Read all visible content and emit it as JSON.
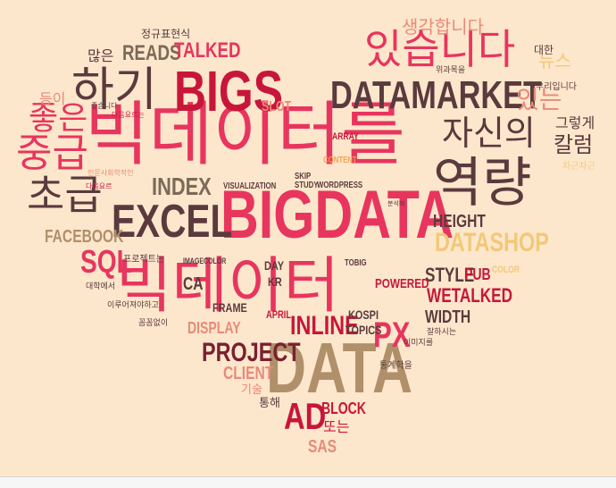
{
  "words": [
    {
      "text": "빅데이터를",
      "color": "#E8355E",
      "lang": "ko"
    },
    {
      "text": "BIGDATA",
      "color": "#E8355E",
      "lang": "en"
    },
    {
      "text": "빅데이터",
      "color": "#E8355E",
      "lang": "ko"
    },
    {
      "text": "DATA",
      "color": "#B0906A",
      "lang": "en"
    },
    {
      "text": "역량",
      "color": "#5B3A3E",
      "lang": "ko"
    },
    {
      "text": "EXCEL",
      "color": "#5B3A3E",
      "lang": "en"
    },
    {
      "text": "DATAMARKET",
      "color": "#5B3A3E",
      "lang": "en"
    },
    {
      "text": "BIGS",
      "color": "#C8163A",
      "lang": "en"
    },
    {
      "text": "하기",
      "color": "#5B3A3E",
      "lang": "ko"
    },
    {
      "text": "있습니다",
      "color": "#E8355E",
      "lang": "ko"
    },
    {
      "text": "자신의",
      "color": "#5B3A3E",
      "lang": "ko"
    },
    {
      "text": "중급",
      "color": "#E8355E",
      "lang": "ko"
    },
    {
      "text": "좋은",
      "color": "#E8355E",
      "lang": "ko"
    },
    {
      "text": "초급",
      "color": "#5B3A3E",
      "lang": "ko"
    },
    {
      "text": "DATASHOP",
      "color": "#F2C878",
      "lang": "en"
    },
    {
      "text": "PX",
      "color": "#E8355E",
      "lang": "en"
    },
    {
      "text": "INLINE",
      "color": "#C8163A",
      "lang": "en"
    },
    {
      "text": "PROJECT",
      "color": "#7A2030",
      "lang": "en"
    },
    {
      "text": "AD",
      "color": "#C8163A",
      "lang": "en"
    },
    {
      "text": "SQL",
      "color": "#E8355E",
      "lang": "en"
    },
    {
      "text": "INDEX",
      "color": "#7A6A58",
      "lang": "en"
    },
    {
      "text": "FACEBOOK",
      "color": "#B0906A",
      "lang": "en"
    },
    {
      "text": "HEIGHT",
      "color": "#5B3A3E",
      "lang": "en"
    },
    {
      "text": "STYLE",
      "color": "#5B3A3E",
      "lang": "en"
    },
    {
      "text": "WETALKED",
      "color": "#C8163A",
      "lang": "en"
    },
    {
      "text": "WIDTH",
      "color": "#5B3A3E",
      "lang": "en"
    },
    {
      "text": "READS",
      "color": "#7A6A58",
      "lang": "en"
    },
    {
      "text": "TALKED",
      "color": "#E8355E",
      "lang": "en"
    },
    {
      "text": "SLOT",
      "color": "#E88A7A",
      "lang": "en"
    },
    {
      "text": "CLIENT",
      "color": "#E88A7A",
      "lang": "en"
    },
    {
      "text": "BLOCK",
      "color": "#C8163A",
      "lang": "en"
    },
    {
      "text": "SAS",
      "color": "#E88A7A",
      "lang": "en"
    },
    {
      "text": "CA",
      "color": "#5B3A3E",
      "lang": "en"
    },
    {
      "text": "FRAME",
      "color": "#5B3A3E",
      "lang": "en"
    },
    {
      "text": "DISPLAY",
      "color": "#E88A7A",
      "lang": "en"
    },
    {
      "text": "TOPICS",
      "color": "#5B3A3E",
      "lang": "en"
    },
    {
      "text": "POWERED",
      "color": "#C8163A",
      "lang": "en"
    },
    {
      "text": "KOSPI",
      "color": "#5B3A3E",
      "lang": "en"
    },
    {
      "text": "KR",
      "color": "#5B3A3E",
      "lang": "en"
    },
    {
      "text": "DAY",
      "color": "#5B3A3E",
      "lang": "en"
    },
    {
      "text": "APRIL",
      "color": "#C8163A",
      "lang": "en"
    },
    {
      "text": "PUB",
      "color": "#C8163A",
      "lang": "en"
    },
    {
      "text": "COLOR",
      "color": "#F2C878",
      "lang": "en"
    },
    {
      "text": "ARRAY",
      "color": "#C8163A",
      "lang": "en"
    },
    {
      "text": "CONTENT",
      "color": "#F2A050",
      "lang": "en"
    },
    {
      "text": "WORDPRESS",
      "color": "#5B3A3E",
      "lang": "en"
    },
    {
      "text": "VISUALIZATION",
      "color": "#5B3A3E",
      "lang": "en"
    },
    {
      "text": "IMAGECOLOR",
      "color": "#5B3A3E",
      "lang": "en"
    },
    {
      "text": "SKIP",
      "color": "#5B3A3E",
      "lang": "en"
    },
    {
      "text": "STUDY",
      "color": "#5B3A3E",
      "lang": "en"
    },
    {
      "text": "TOBIG",
      "color": "#5B3A3E",
      "lang": "en"
    },
    {
      "text": "뉴스",
      "color": "#F2C878",
      "lang": "ko"
    },
    {
      "text": "있는",
      "color": "#E88A7A",
      "lang": "ko"
    },
    {
      "text": "칼럼",
      "color": "#5B3A3E",
      "lang": "ko"
    },
    {
      "text": "그렇게",
      "color": "#5B3A3E",
      "lang": "ko"
    },
    {
      "text": "생각합니다",
      "color": "#E88A7A",
      "lang": "ko"
    },
    {
      "text": "정규표현식",
      "color": "#5B3A3E",
      "lang": "ko"
    },
    {
      "text": "많은",
      "color": "#5B3A3E",
      "lang": "ko"
    },
    {
      "text": "등이",
      "color": "#E88A7A",
      "lang": "ko"
    },
    {
      "text": "대한",
      "color": "#5B3A3E",
      "lang": "ko"
    },
    {
      "text": "우리입니다",
      "color": "#5B3A3E",
      "lang": "ko"
    },
    {
      "text": "프로젝트는",
      "color": "#5B3A3E",
      "lang": "ko"
    },
    {
      "text": "통해",
      "color": "#5B3A3E",
      "lang": "ko"
    },
    {
      "text": "또는",
      "color": "#C8163A",
      "lang": "ko"
    },
    {
      "text": "기술",
      "color": "#E88A7A",
      "lang": "ko"
    },
    {
      "text": "통계학을",
      "color": "#5B3A3E",
      "lang": "ko"
    },
    {
      "text": "이미지를",
      "color": "#5B3A3E",
      "lang": "ko"
    },
    {
      "text": "대학에서",
      "color": "#5B3A3E",
      "lang": "ko"
    },
    {
      "text": "꼼꼼없이",
      "color": "#5B3A3E",
      "lang": "ko"
    },
    {
      "text": "이루어져야하고",
      "color": "#5B3A3E",
      "lang": "ko"
    },
    {
      "text": "분석해",
      "color": "#5B3A3E",
      "lang": "ko"
    },
    {
      "text": "잘하시는",
      "color": "#5B3A3E",
      "lang": "ko"
    },
    {
      "text": "위과목을",
      "color": "#5B3A3E",
      "lang": "ko"
    },
    {
      "text": "좋습니다",
      "color": "#5B3A3E",
      "lang": "ko"
    },
    {
      "text": "다음요르는",
      "color": "#C8163A",
      "lang": "ko"
    },
    {
      "text": "다음요르",
      "color": "#C8163A",
      "lang": "ko"
    },
    {
      "text": "차근차근",
      "color": "#F2C878",
      "lang": "ko"
    },
    {
      "text": "인문사회학적인",
      "color": "#E88A7A",
      "lang": "ko"
    }
  ]
}
